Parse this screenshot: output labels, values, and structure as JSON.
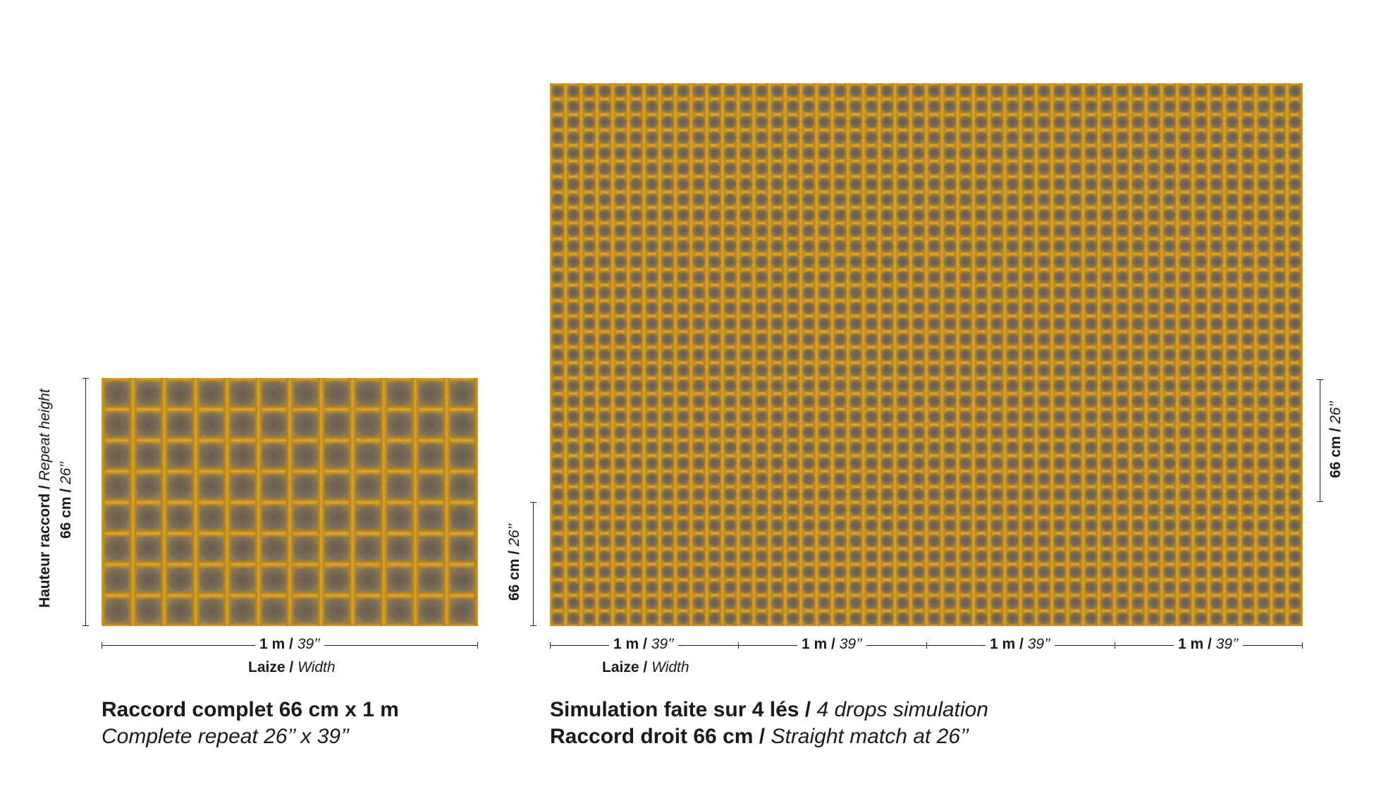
{
  "left_panel": {
    "repeat_height_label_fr": "Hauteur raccord",
    "repeat_height_label_en": "Repeat height",
    "repeat_height_cm": "66 cm",
    "repeat_height_in": "26’’",
    "width_m": "1 m",
    "width_in": "39’’",
    "width_label_fr": "Laize",
    "width_label_en": "Width",
    "caption_line1": "Raccord complet 66 cm x 1 m",
    "caption_line2": "Complete repeat 26’’ x 39’’"
  },
  "right_panel": {
    "left_height_cm": "66 cm",
    "left_height_in": "26’’",
    "right_height_cm": "66 cm",
    "right_height_in": "26’’",
    "drops": [
      {
        "m": "1 m",
        "in": "39’’"
      },
      {
        "m": "1 m",
        "in": "39’’"
      },
      {
        "m": "1 m",
        "in": "39’’"
      },
      {
        "m": "1 m",
        "in": "39’’"
      }
    ],
    "width_label_fr": "Laize",
    "width_label_en": "Width",
    "caption_line1_fr": "Simulation faite sur 4 lés",
    "caption_line1_en": "4 drops simulation",
    "caption_line2_fr": "Raccord droit 66 cm",
    "caption_line2_en": "Straight match at 26’’"
  },
  "colors": {
    "pattern_gold": "#d6a22c",
    "pattern_grey": "#6e6458",
    "ink": "#1a1a1a"
  }
}
